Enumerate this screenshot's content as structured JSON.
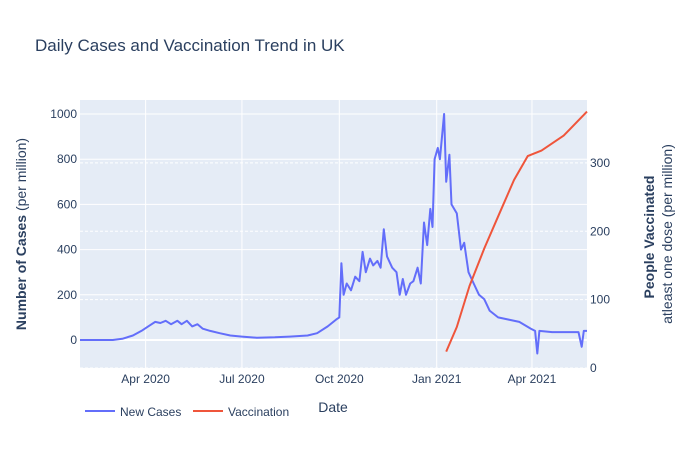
{
  "chart_data": {
    "type": "line",
    "title": "Daily Cases and Vaccination Trend in UK",
    "xlabel": "Date",
    "ylabel_bold": "Number of Cases",
    "ylabel_rest": " (per million)",
    "y2label_line1": "People Vaccinated",
    "y2label_line2": "atleast one dose (per million)",
    "xlim": [
      "2020-01-30",
      "2021-05-23"
    ],
    "ylim": [
      -124,
      1062
    ],
    "y2lim": [
      0,
      392
    ],
    "xticks": [
      {
        "date": "2020-04-01",
        "label": "Apr 2020"
      },
      {
        "date": "2020-07-01",
        "label": "Jul 2020"
      },
      {
        "date": "2020-10-01",
        "label": "Oct 2020"
      },
      {
        "date": "2021-01-01",
        "label": "Jan 2021"
      },
      {
        "date": "2021-04-01",
        "label": "Apr 2021"
      }
    ],
    "yticks": [
      0,
      200,
      400,
      600,
      800,
      1000
    ],
    "y2ticks": [
      0,
      100,
      200,
      300
    ],
    "legend_position": "bottom-left",
    "series": [
      {
        "name": "New Cases",
        "axis": "left",
        "color": "#636efa",
        "points": [
          [
            "2020-01-30",
            0
          ],
          [
            "2020-03-01",
            0
          ],
          [
            "2020-03-10",
            5
          ],
          [
            "2020-03-20",
            20
          ],
          [
            "2020-03-28",
            40
          ],
          [
            "2020-04-05",
            65
          ],
          [
            "2020-04-10",
            80
          ],
          [
            "2020-04-15",
            75
          ],
          [
            "2020-04-20",
            85
          ],
          [
            "2020-04-25",
            70
          ],
          [
            "2020-05-01",
            85
          ],
          [
            "2020-05-05",
            70
          ],
          [
            "2020-05-10",
            85
          ],
          [
            "2020-05-15",
            60
          ],
          [
            "2020-05-20",
            70
          ],
          [
            "2020-05-25",
            50
          ],
          [
            "2020-06-01",
            40
          ],
          [
            "2020-06-10",
            30
          ],
          [
            "2020-06-20",
            20
          ],
          [
            "2020-07-01",
            15
          ],
          [
            "2020-07-15",
            10
          ],
          [
            "2020-08-01",
            12
          ],
          [
            "2020-08-15",
            15
          ],
          [
            "2020-09-01",
            20
          ],
          [
            "2020-09-10",
            30
          ],
          [
            "2020-09-20",
            60
          ],
          [
            "2020-09-28",
            90
          ],
          [
            "2020-10-01",
            100
          ],
          [
            "2020-10-03",
            340
          ],
          [
            "2020-10-05",
            200
          ],
          [
            "2020-10-08",
            250
          ],
          [
            "2020-10-12",
            220
          ],
          [
            "2020-10-16",
            280
          ],
          [
            "2020-10-20",
            260
          ],
          [
            "2020-10-23",
            390
          ],
          [
            "2020-10-26",
            300
          ],
          [
            "2020-10-30",
            360
          ],
          [
            "2020-11-02",
            330
          ],
          [
            "2020-11-06",
            350
          ],
          [
            "2020-11-09",
            320
          ],
          [
            "2020-11-12",
            490
          ],
          [
            "2020-11-15",
            370
          ],
          [
            "2020-11-20",
            320
          ],
          [
            "2020-11-24",
            300
          ],
          [
            "2020-11-27",
            200
          ],
          [
            "2020-11-30",
            270
          ],
          [
            "2020-12-03",
            200
          ],
          [
            "2020-12-07",
            250
          ],
          [
            "2020-12-10",
            260
          ],
          [
            "2020-12-14",
            320
          ],
          [
            "2020-12-17",
            250
          ],
          [
            "2020-12-20",
            520
          ],
          [
            "2020-12-23",
            420
          ],
          [
            "2020-12-26",
            580
          ],
          [
            "2020-12-28",
            500
          ],
          [
            "2020-12-30",
            800
          ],
          [
            "2021-01-02",
            850
          ],
          [
            "2021-01-04",
            800
          ],
          [
            "2021-01-06",
            900
          ],
          [
            "2021-01-08",
            1000
          ],
          [
            "2021-01-10",
            700
          ],
          [
            "2021-01-13",
            820
          ],
          [
            "2021-01-15",
            600
          ],
          [
            "2021-01-20",
            560
          ],
          [
            "2021-01-24",
            400
          ],
          [
            "2021-01-27",
            430
          ],
          [
            "2021-01-31",
            300
          ],
          [
            "2021-02-05",
            250
          ],
          [
            "2021-02-10",
            200
          ],
          [
            "2021-02-15",
            180
          ],
          [
            "2021-02-20",
            130
          ],
          [
            "2021-02-28",
            100
          ],
          [
            "2021-03-10",
            90
          ],
          [
            "2021-03-20",
            80
          ],
          [
            "2021-03-31",
            50
          ],
          [
            "2021-04-04",
            40
          ],
          [
            "2021-04-06",
            -60
          ],
          [
            "2021-04-08",
            40
          ],
          [
            "2021-04-20",
            35
          ],
          [
            "2021-05-01",
            35
          ],
          [
            "2021-05-15",
            35
          ],
          [
            "2021-05-18",
            -30
          ],
          [
            "2021-05-20",
            40
          ],
          [
            "2021-05-23",
            40
          ]
        ]
      },
      {
        "name": "Vaccination",
        "axis": "right",
        "color": "#ef553b",
        "points": [
          [
            "2021-01-10",
            24
          ],
          [
            "2021-01-20",
            60
          ],
          [
            "2021-02-01",
            120
          ],
          [
            "2021-02-15",
            175
          ],
          [
            "2021-03-01",
            225
          ],
          [
            "2021-03-15",
            275
          ],
          [
            "2021-03-28",
            310
          ],
          [
            "2021-04-10",
            318
          ],
          [
            "2021-05-01",
            340
          ],
          [
            "2021-05-23",
            375
          ]
        ]
      }
    ]
  }
}
